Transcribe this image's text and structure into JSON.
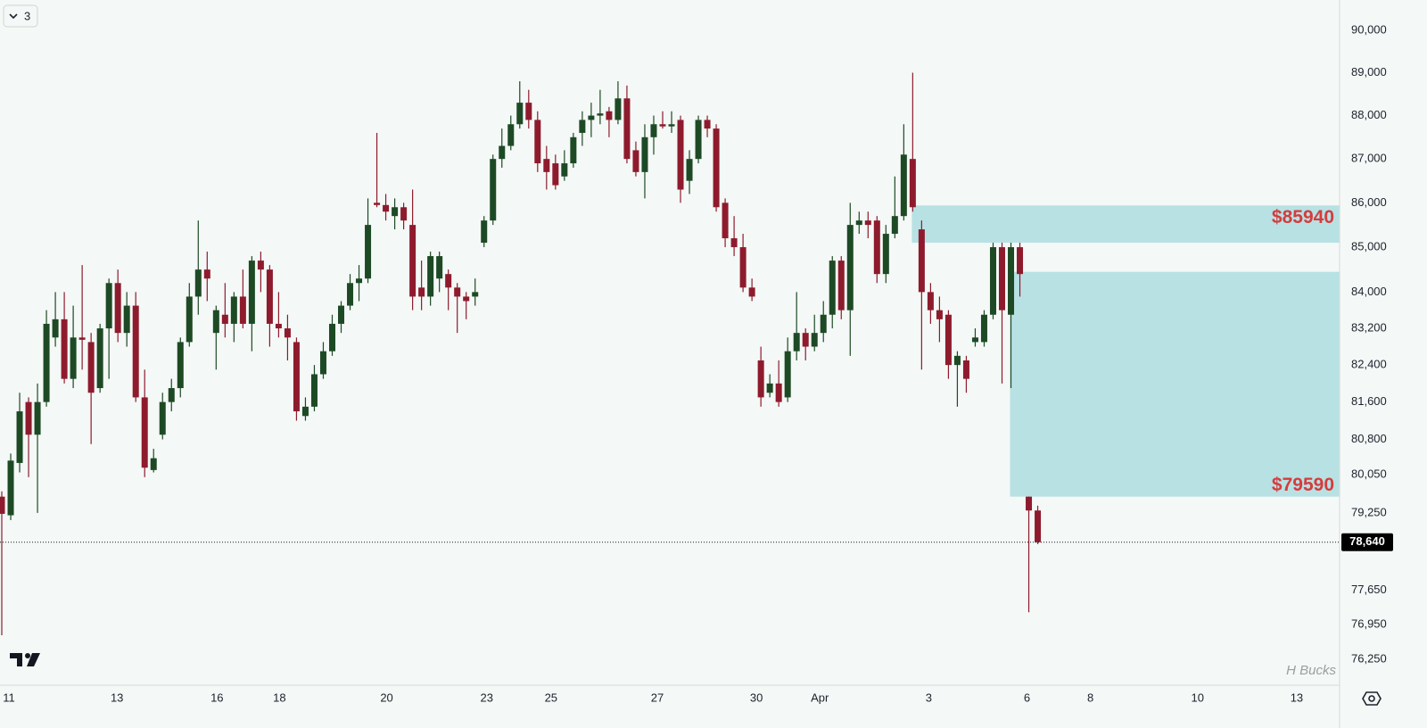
{
  "chart_data": {
    "type": "candlestick",
    "badge": "3",
    "watermark": "H Bucks",
    "log_scale": true,
    "grid": false,
    "up_color": "#1d4a25",
    "down_color": "#8e1b2d",
    "zone_color": "#b8e1e4",
    "zone_label_color": "#d63c3c",
    "xlim": [
      -0.2,
      149.8
    ],
    "xticks": [
      {
        "value": 0.8,
        "label": "11"
      },
      {
        "value": 12.9,
        "label": "13"
      },
      {
        "value": 24.1,
        "label": "16"
      },
      {
        "value": 31.1,
        "label": "18"
      },
      {
        "value": 43.1,
        "label": "20"
      },
      {
        "value": 54.3,
        "label": "23"
      },
      {
        "value": 61.5,
        "label": "25"
      },
      {
        "value": 73.4,
        "label": "27"
      },
      {
        "value": 84.5,
        "label": "30"
      },
      {
        "value": 91.6,
        "label": "Apr"
      },
      {
        "value": 103.8,
        "label": "3"
      },
      {
        "value": 114.8,
        "label": "6"
      },
      {
        "value": 121.9,
        "label": "8"
      },
      {
        "value": 133.9,
        "label": "10"
      },
      {
        "value": 145.0,
        "label": "13"
      }
    ],
    "ylim": [
      75731,
      90723
    ],
    "yticks": [
      {
        "value": 90000,
        "label": "90,000"
      },
      {
        "value": 89000,
        "label": "89,000"
      },
      {
        "value": 88000,
        "label": "88,000"
      },
      {
        "value": 87000,
        "label": "87,000"
      },
      {
        "value": 86000,
        "label": "86,000"
      },
      {
        "value": 85000,
        "label": "85,000"
      },
      {
        "value": 84000,
        "label": "84,000"
      },
      {
        "value": 83200,
        "label": "83,200"
      },
      {
        "value": 82400,
        "label": "82,400"
      },
      {
        "value": 81600,
        "label": "81,600"
      },
      {
        "value": 80800,
        "label": "80,800"
      },
      {
        "value": 80050,
        "label": "80,050"
      },
      {
        "value": 79250,
        "label": "79,250"
      },
      {
        "value": 77650,
        "label": "77,650"
      },
      {
        "value": 76950,
        "label": "76,950"
      },
      {
        "value": 76250,
        "label": "76,250"
      }
    ],
    "last_price": {
      "value": 78640,
      "label": "78,640"
    },
    "zones": [
      {
        "label": "$85940",
        "top": 85940,
        "bottom": 85100,
        "start": 101.9,
        "label_at": "top"
      },
      {
        "label": "$79590",
        "top": 84450,
        "bottom": 79590,
        "start": 112.9,
        "label_at": "bottom"
      }
    ],
    "open": [
      79590,
      79200,
      80300,
      81600,
      80900,
      81600,
      83000,
      83400,
      82100,
      83000,
      82900,
      81900,
      83200,
      84200,
      83100,
      83700,
      81700,
      80150,
      80900,
      81600,
      81900,
      82900,
      83900,
      84500,
      83100,
      83500,
      83300,
      83900,
      83300,
      84700,
      84500,
      83300,
      83200,
      82900,
      81300,
      81500,
      82200,
      82700,
      83300,
      83700,
      84200,
      84300,
      86000,
      85950,
      85700,
      85900,
      85500,
      84100,
      83900,
      84300,
      84400,
      84100,
      83900,
      83900,
      85100,
      85600,
      87000,
      87300,
      87800,
      88300,
      87900,
      87000,
      86900,
      86600,
      86900,
      87600,
      87900,
      88000,
      88100,
      87900,
      88400,
      87200,
      86700,
      87500,
      87800,
      87750,
      87900,
      86500,
      87000,
      87900,
      87700,
      86000,
      85200,
      85000,
      84100,
      82500,
      81800,
      82000,
      81700,
      82700,
      83100,
      82800,
      83100,
      83500,
      84700,
      83600,
      85500,
      85600,
      85600,
      84400,
      85300,
      85700,
      87000,
      85400,
      84000,
      83600,
      83500,
      82400,
      82500,
      82900,
      82900,
      83500,
      85000,
      83500,
      85000,
      79590,
      79300
    ],
    "high": [
      79700,
      80500,
      81800,
      81700,
      82000,
      83600,
      84000,
      84000,
      83700,
      84600,
      83100,
      83300,
      84300,
      84500,
      84000,
      84000,
      82300,
      80600,
      81800,
      82100,
      83000,
      84200,
      85600,
      84900,
      83700,
      84200,
      84000,
      84500,
      84800,
      84900,
      84600,
      84000,
      83500,
      83000,
      81700,
      82400,
      82900,
      83500,
      83800,
      84400,
      84600,
      86100,
      87600,
      86200,
      86100,
      86000,
      86300,
      84700,
      84900,
      84900,
      84500,
      84200,
      84000,
      84300,
      85700,
      87100,
      87700,
      88000,
      88800,
      88600,
      88100,
      87300,
      87100,
      87200,
      87600,
      88100,
      88300,
      88600,
      88200,
      88800,
      88700,
      87400,
      87800,
      88000,
      88100,
      88100,
      88000,
      87200,
      88000,
      88000,
      87800,
      86100,
      85700,
      85300,
      84300,
      82800,
      82200,
      82500,
      83000,
      84000,
      83200,
      83500,
      83800,
      84800,
      84800,
      86000,
      85800,
      85800,
      85700,
      85500,
      86600,
      87800,
      89000,
      85600,
      84200,
      83900,
      83600,
      82700,
      82600,
      83200,
      83600,
      85100,
      85100,
      85100,
      85100,
      79590,
      79400
    ],
    "low": [
      76735,
      79100,
      80100,
      80000,
      79250,
      81500,
      82800,
      82000,
      81900,
      82300,
      80700,
      81800,
      82100,
      82900,
      82800,
      81600,
      80000,
      80100,
      80800,
      81400,
      81700,
      82800,
      83500,
      83800,
      82300,
      83000,
      82900,
      83200,
      82700,
      84000,
      82800,
      83000,
      82500,
      81200,
      81200,
      81400,
      82100,
      82600,
      83100,
      83600,
      83800,
      84200,
      85900,
      85600,
      85400,
      85400,
      83600,
      83600,
      83700,
      84000,
      83600,
      83100,
      83400,
      83700,
      85000,
      85500,
      86800,
      87200,
      87700,
      87700,
      86700,
      86300,
      86300,
      86500,
      86800,
      87300,
      87500,
      87800,
      87500,
      87800,
      86900,
      86600,
      86100,
      87100,
      87700,
      87600,
      86000,
      86200,
      86900,
      87500,
      85800,
      85000,
      84800,
      84000,
      83800,
      81500,
      81700,
      81500,
      81600,
      82500,
      82500,
      82700,
      82900,
      83200,
      83400,
      82600,
      85300,
      85200,
      84200,
      84200,
      85200,
      85600,
      85800,
      82300,
      83300,
      82900,
      82100,
      81500,
      81800,
      82800,
      82800,
      83400,
      82000,
      81900,
      83900,
      77200,
      78600
    ],
    "close": [
      79230,
      80350,
      81400,
      80900,
      81600,
      83300,
      83400,
      82100,
      83000,
      82950,
      81800,
      83200,
      84200,
      83100,
      83700,
      81700,
      80200,
      80400,
      81600,
      81900,
      82900,
      83900,
      84500,
      84300,
      83600,
      83300,
      83900,
      83300,
      84700,
      84500,
      83300,
      83200,
      83000,
      81400,
      81500,
      82200,
      82700,
      83300,
      83700,
      84200,
      84300,
      85500,
      85950,
      85800,
      85900,
      85600,
      83900,
      83900,
      84800,
      84800,
      84100,
      83900,
      83800,
      84000,
      85600,
      87000,
      87300,
      87800,
      88300,
      87900,
      86900,
      86700,
      86400,
      86900,
      87500,
      87900,
      88000,
      88050,
      87900,
      88400,
      87000,
      86700,
      87500,
      87800,
      87750,
      87800,
      86300,
      87000,
      87900,
      87700,
      85900,
      85200,
      85000,
      84100,
      83900,
      81700,
      82000,
      81600,
      82700,
      83100,
      82800,
      83100,
      83500,
      84700,
      83600,
      85500,
      85600,
      85500,
      84400,
      85300,
      85700,
      87100,
      85900,
      84000,
      83600,
      83400,
      82400,
      82600,
      82100,
      83000,
      83500,
      85000,
      83600,
      85000,
      84400,
      79300,
      78640
    ]
  }
}
